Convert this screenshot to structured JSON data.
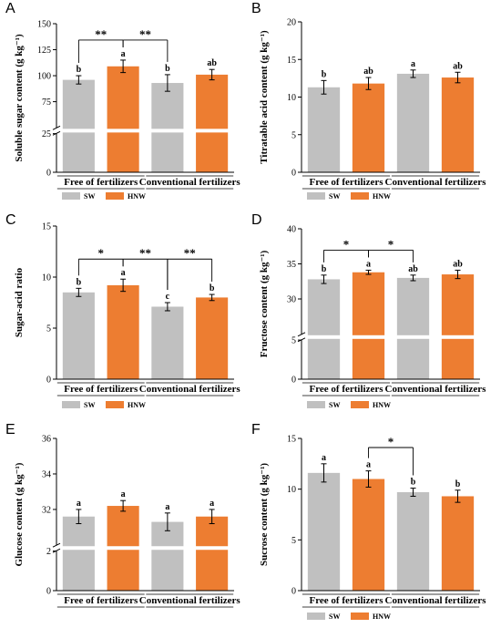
{
  "legend": {
    "items": [
      {
        "name": "SW",
        "color": "#c0c0c0"
      },
      {
        "name": "HNW",
        "color": "#ed7d31"
      }
    ]
  },
  "chart_data": [
    {
      "panel": "A",
      "type": "bar",
      "ylabel": "Soluble sugar content (g kg⁻¹)",
      "groups": [
        "Free of fertilizers",
        "Conventional fertilizers"
      ],
      "categories": [
        "SW",
        "HNW",
        "SW",
        "HNW"
      ],
      "values": [
        96,
        109,
        93,
        101
      ],
      "errors": [
        4,
        6,
        8,
        5
      ],
      "letters": [
        "b",
        "a",
        "b",
        "ab"
      ],
      "yticks": [
        "0",
        "25",
        "75",
        "100",
        "125",
        "150"
      ],
      "axis_break": true,
      "ylim": [
        0,
        150
      ],
      "significance": [
        {
          "from": 0,
          "to": 1,
          "label": "**"
        },
        {
          "from": 1,
          "to": 2,
          "label": "**"
        }
      ]
    },
    {
      "panel": "B",
      "type": "bar",
      "ylabel": "Titratable acid content (g kg⁻¹)",
      "groups": [
        "Free of fertilizers",
        "Conventional fertilizers"
      ],
      "categories": [
        "SW",
        "HNW",
        "SW",
        "HNW"
      ],
      "values": [
        11.3,
        11.8,
        13.1,
        12.6
      ],
      "errors": [
        0.9,
        0.8,
        0.5,
        0.7
      ],
      "letters": [
        "b",
        "ab",
        "a",
        "ab"
      ],
      "yticks": [
        "0",
        "5",
        "10",
        "15",
        "20"
      ],
      "axis_break": false,
      "ylim": [
        0,
        20
      ],
      "significance": []
    },
    {
      "panel": "C",
      "type": "bar",
      "ylabel": "Sugar-acid ratio",
      "groups": [
        "Free of fertilizers",
        "Conventional fertilizers"
      ],
      "categories": [
        "SW",
        "HNW",
        "SW",
        "HNW"
      ],
      "values": [
        8.5,
        9.2,
        7.1,
        8.0
      ],
      "errors": [
        0.4,
        0.6,
        0.4,
        0.3
      ],
      "letters": [
        "b",
        "a",
        "c",
        "b"
      ],
      "yticks": [
        "0",
        "5",
        "10",
        "15"
      ],
      "axis_break": false,
      "ylim": [
        0,
        15
      ],
      "significance": [
        {
          "from": 0,
          "to": 1,
          "label": "*"
        },
        {
          "from": 1,
          "to": 2,
          "label": "**"
        },
        {
          "from": 2,
          "to": 3,
          "label": "**"
        }
      ]
    },
    {
      "panel": "D",
      "type": "bar",
      "ylabel": "Fructose content (g kg⁻¹)",
      "groups": [
        "Free of fertilizers",
        "Conventional fertilizers"
      ],
      "categories": [
        "SW",
        "HNW",
        "SW",
        "HNW"
      ],
      "values": [
        32.8,
        33.8,
        33.0,
        33.5
      ],
      "errors": [
        0.6,
        0.3,
        0.4,
        0.6
      ],
      "letters": [
        "b",
        "a",
        "ab",
        "ab"
      ],
      "yticks": [
        "0",
        "5",
        "30",
        "35",
        "40"
      ],
      "axis_break": true,
      "ylim": [
        0,
        40
      ],
      "significance": [
        {
          "from": 0,
          "to": 1,
          "label": "*"
        },
        {
          "from": 1,
          "to": 2,
          "label": "*"
        }
      ]
    },
    {
      "panel": "E",
      "type": "bar",
      "ylabel": "Glucose content (g kg⁻¹)",
      "groups": [
        "Free of fertilizers",
        "Conventional fertilizers"
      ],
      "categories": [
        "SW",
        "HNW",
        "SW",
        "HNW"
      ],
      "values": [
        31.6,
        32.2,
        31.3,
        31.6
      ],
      "errors": [
        0.4,
        0.3,
        0.5,
        0.4
      ],
      "letters": [
        "a",
        "a",
        "a",
        "a"
      ],
      "yticks": [
        "0",
        "2",
        "32",
        "34",
        "36"
      ],
      "axis_break": true,
      "ylim": [
        0,
        36
      ],
      "significance": []
    },
    {
      "panel": "F",
      "type": "bar",
      "ylabel": "Sucrose content (g kg⁻¹)",
      "groups": [
        "Free of fertilizers",
        "Conventional fertilizers"
      ],
      "categories": [
        "SW",
        "HNW",
        "SW",
        "HNW"
      ],
      "values": [
        11.6,
        11.0,
        9.7,
        9.3
      ],
      "errors": [
        0.9,
        0.8,
        0.4,
        0.6
      ],
      "letters": [
        "a",
        "a",
        "b",
        "b"
      ],
      "yticks": [
        "0",
        "5",
        "10",
        "15"
      ],
      "axis_break": false,
      "ylim": [
        0,
        15
      ],
      "significance": [
        {
          "from": 1,
          "to": 2,
          "label": "*"
        }
      ]
    }
  ]
}
